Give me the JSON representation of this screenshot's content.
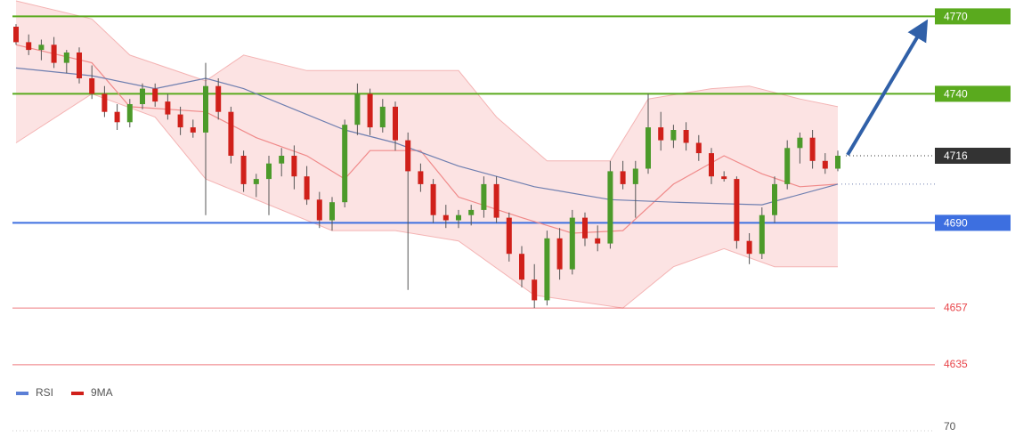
{
  "chart_data": {
    "type": "candlestick",
    "ylim": [
      4630,
      4776
    ],
    "xlim": [
      0,
      65
    ],
    "up_color": "#4c9a2a",
    "down_color": "#d0201a",
    "open": [
      4766,
      4760,
      4757,
      4759,
      4752,
      4756,
      4746,
      4740,
      4733,
      4729,
      4736,
      4742,
      4737,
      4732,
      4727,
      4725,
      4743,
      4733,
      4716,
      4705,
      4707,
      4713,
      4716,
      4708,
      4699,
      4691,
      4698,
      4728,
      4740,
      4727,
      4735,
      4722,
      4710,
      4705,
      4693,
      4691,
      4693,
      4695,
      4705,
      4692,
      4678,
      4668,
      4660,
      4684,
      4672,
      4692,
      4684,
      4682,
      4710,
      4705,
      4711,
      4727,
      4722,
      4726,
      4721,
      4717,
      4708,
      4707,
      4683,
      4678,
      4693,
      4705,
      4719,
      4723,
      4714,
      4711
    ],
    "high": [
      4767,
      4763,
      4761,
      4762,
      4757,
      4758,
      4751,
      4743,
      4736,
      4738,
      4744,
      4744,
      4740,
      4735,
      4730,
      4752,
      4746,
      4735,
      4718,
      4709,
      4716,
      4719,
      4720,
      4712,
      4702,
      4700,
      4730,
      4744,
      4742,
      4738,
      4737,
      4725,
      4713,
      4707,
      4697,
      4695,
      4697,
      4708,
      4708,
      4694,
      4681,
      4674,
      4687,
      4688,
      4695,
      4694,
      4689,
      4714,
      4714,
      4714,
      4740,
      4733,
      4728,
      4729,
      4724,
      4719,
      4710,
      4708,
      4686,
      4696,
      4708,
      4722,
      4725,
      4726,
      4717,
      4718
    ],
    "low": [
      4759,
      4755,
      4753,
      4750,
      4748,
      4744,
      4738,
      4731,
      4726,
      4727,
      4734,
      4735,
      4730,
      4724,
      4723,
      4693,
      4730,
      4713,
      4702,
      4700,
      4693,
      4708,
      4703,
      4697,
      4688,
      4687,
      4696,
      4724,
      4724,
      4725,
      4718,
      4664,
      4702,
      4690,
      4688,
      4688,
      4689,
      4692,
      4690,
      4675,
      4665,
      4657,
      4658,
      4668,
      4670,
      4681,
      4679,
      4680,
      4703,
      4692,
      4709,
      4718,
      4719,
      4718,
      4714,
      4705,
      4706,
      4680,
      4674,
      4676,
      4690,
      4703,
      4713,
      4711,
      4709,
      4710
    ],
    "close": [
      4760,
      4757,
      4759,
      4752,
      4756,
      4746,
      4740,
      4733,
      4729,
      4736,
      4742,
      4737,
      4732,
      4727,
      4725,
      4743,
      4733,
      4716,
      4705,
      4707,
      4713,
      4716,
      4708,
      4699,
      4691,
      4698,
      4728,
      4740,
      4727,
      4735,
      4722,
      4710,
      4705,
      4693,
      4691,
      4693,
      4695,
      4705,
      4692,
      4678,
      4668,
      4660,
      4684,
      4672,
      4692,
      4684,
      4682,
      4710,
      4705,
      4711,
      4727,
      4722,
      4726,
      4721,
      4717,
      4708,
      4707,
      4683,
      4678,
      4693,
      4705,
      4719,
      4723,
      4714,
      4711,
      4716
    ],
    "moving_averages": [
      {
        "color": "#f08a8a",
        "x": [
          0,
          6,
          9,
          15,
          19,
          23,
          26,
          28,
          32,
          35,
          40,
          44,
          48,
          52,
          56,
          59,
          62,
          65
        ],
        "values": [
          4759,
          4752,
          4735,
          4733,
          4723,
          4716,
          4707,
          4718,
          4718,
          4700,
          4692,
          4686,
          4687,
          4705,
          4716,
          4709,
          4704,
          4705
        ]
      },
      {
        "color": "#6f7fb0",
        "x": [
          0,
          6,
          11,
          15,
          18,
          26,
          30,
          35,
          41,
          47,
          52,
          59,
          65
        ],
        "values": [
          4750,
          4747,
          4742,
          4746,
          4742,
          4726,
          4721,
          4712,
          4704,
          4699,
          4698,
          4697,
          4705
        ]
      }
    ],
    "band": {
      "color": "#fbdada",
      "upper": {
        "x": [
          0,
          6,
          9,
          15,
          18,
          23,
          28,
          35,
          38,
          42,
          47,
          50,
          55,
          58,
          62,
          65
        ],
        "values": [
          4776,
          4769,
          4755,
          4745,
          4755,
          4749,
          4749,
          4749,
          4731,
          4714,
          4714,
          4738,
          4742,
          4743,
          4738,
          4735
        ]
      },
      "lower": {
        "x": [
          0,
          6,
          11,
          15,
          20,
          25,
          30,
          35,
          41,
          48,
          52,
          56,
          60,
          65
        ],
        "values": [
          4721,
          4740,
          4731,
          4707,
          4697,
          4687,
          4687,
          4683,
          4662,
          4657,
          4673,
          4680,
          4673,
          4673
        ]
      }
    },
    "levels": [
      {
        "value": 4770,
        "color": "#5aaa1e",
        "line": "solid",
        "label_style": "box"
      },
      {
        "value": 4740,
        "color": "#5aaa1e",
        "line": "solid",
        "label_style": "box"
      },
      {
        "value": 4716,
        "color": "#333333",
        "line": "dotted",
        "label_style": "box"
      },
      {
        "value": 4690,
        "color": "#3d6fe0",
        "line": "solid",
        "label_style": "box"
      },
      {
        "value": 4657,
        "color": "#e8454a",
        "line": "thin",
        "label_style": "text"
      },
      {
        "value": 4635,
        "color": "#e8454a",
        "line": "thin",
        "label_style": "text"
      }
    ],
    "rsi_pane": {
      "legend": [
        {
          "name": "RSI",
          "color": "#5b7fd6"
        },
        {
          "name": "9MA",
          "color": "#d0201a"
        }
      ],
      "yticks": [
        70
      ]
    }
  }
}
